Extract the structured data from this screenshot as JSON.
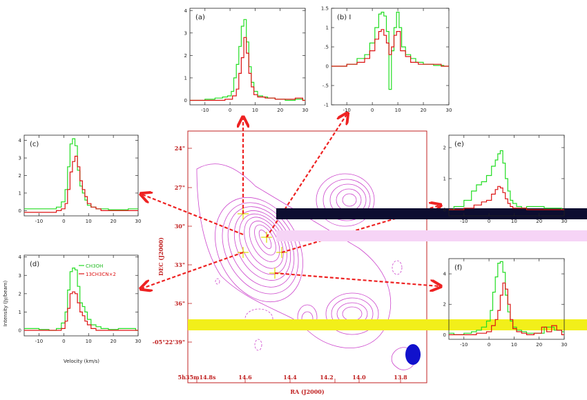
{
  "chart_data": [
    {
      "type": "line",
      "id": "a",
      "panel_label": "(a)",
      "xlim": [
        -16,
        30
      ],
      "ylim": [
        -0.2,
        4.1
      ],
      "xticks": [
        -10,
        0,
        10,
        20,
        30
      ],
      "yticks": [
        0,
        1,
        2,
        3,
        4
      ],
      "xticklabels": [
        "-10",
        "0",
        "10",
        "20",
        "30"
      ],
      "yticklabels": [
        "0",
        "1",
        "2",
        "3",
        "4"
      ],
      "series": [
        {
          "color": "#22dd22",
          "x": [
            -16,
            -12,
            -8,
            -4,
            -2,
            0,
            1,
            2,
            3,
            4,
            5,
            6,
            7,
            8,
            9,
            10,
            12,
            14,
            16,
            20,
            24,
            28,
            30
          ],
          "y": [
            0,
            0,
            0.05,
            0.1,
            0.15,
            0.2,
            0.4,
            1.0,
            1.6,
            2.4,
            3.3,
            3.6,
            2.6,
            1.5,
            0.8,
            0.4,
            0.2,
            0.15,
            0.1,
            0.05,
            0,
            0.05,
            0
          ]
        },
        {
          "color": "#dd1111",
          "x": [
            -16,
            -12,
            -8,
            -4,
            0,
            2,
            3,
            4,
            5,
            6,
            7,
            8,
            9,
            10,
            12,
            16,
            20,
            24,
            28,
            30
          ],
          "y": [
            0,
            0,
            0,
            0,
            0.05,
            0.2,
            0.5,
            1.2,
            1.9,
            2.8,
            2.1,
            1.2,
            0.6,
            0.25,
            0.15,
            0.1,
            0.05,
            0.05,
            0.1,
            0
          ]
        }
      ]
    },
    {
      "type": "line",
      "id": "b",
      "panel_label": "(b) I",
      "xlim": [
        -16,
        30
      ],
      "ylim": [
        -1,
        1.5
      ],
      "xticks": [
        -10,
        0,
        10,
        20,
        30
      ],
      "yticks": [
        -1,
        -0.5,
        0,
        0.5,
        1,
        1.5
      ],
      "xticklabels": [
        "-10",
        "0",
        "10",
        "20",
        "30"
      ],
      "yticklabels": [
        "-1",
        "-.5",
        "0",
        ".5",
        "1",
        "1.5"
      ],
      "series": [
        {
          "color": "#22dd22",
          "x": [
            -16,
            -12,
            -8,
            -4,
            -2,
            0,
            2,
            3,
            4,
            5,
            6,
            7,
            8,
            9,
            10,
            11,
            12,
            14,
            16,
            18,
            22,
            26,
            30
          ],
          "y": [
            0,
            0,
            0.05,
            0.2,
            0.3,
            0.6,
            1.0,
            1.35,
            1.4,
            1.3,
            0.9,
            -0.6,
            0.4,
            1.0,
            1.4,
            1.0,
            0.5,
            0.3,
            0.2,
            0.1,
            0.05,
            0.02,
            0
          ]
        },
        {
          "color": "#dd1111",
          "x": [
            -16,
            -12,
            -8,
            -4,
            -2,
            0,
            2,
            3,
            4,
            5,
            6,
            7,
            8,
            9,
            10,
            12,
            14,
            16,
            20,
            24,
            30
          ],
          "y": [
            0,
            0,
            0.05,
            0.1,
            0.2,
            0.4,
            0.7,
            0.9,
            0.95,
            0.8,
            0.6,
            0.3,
            0.5,
            0.8,
            0.9,
            0.4,
            0.25,
            0.1,
            0.05,
            0.05,
            0
          ]
        }
      ]
    },
    {
      "type": "line",
      "id": "c",
      "panel_label": "(c)",
      "xlim": [
        -16,
        30
      ],
      "ylim": [
        -0.3,
        4.3
      ],
      "xticks": [
        -10,
        0,
        10,
        20,
        30
      ],
      "yticks": [
        0,
        1,
        2,
        3,
        4
      ],
      "xticklabels": [
        "-10",
        "0",
        "10",
        "20",
        "30"
      ],
      "yticklabels": [
        "0",
        "1",
        "2",
        "3",
        "4"
      ],
      "series": [
        {
          "color": "#22dd22",
          "x": [
            -16,
            -12,
            -8,
            -4,
            -2,
            0,
            1,
            2,
            3,
            4,
            5,
            6,
            7,
            8,
            9,
            10,
            12,
            14,
            16,
            20,
            24,
            28,
            30
          ],
          "y": [
            0.1,
            0.1,
            0.1,
            0.1,
            0.2,
            0.5,
            1.2,
            2.5,
            3.8,
            4.1,
            3.7,
            2.3,
            1.4,
            1.0,
            0.6,
            0.3,
            0.2,
            0.1,
            0.1,
            0.05,
            0.05,
            0.1,
            0.1
          ]
        },
        {
          "color": "#dd1111",
          "x": [
            -16,
            -12,
            -8,
            -4,
            -2,
            0,
            1,
            2,
            3,
            4,
            5,
            6,
            7,
            8,
            9,
            10,
            12,
            14,
            16,
            20,
            24,
            28,
            30
          ],
          "y": [
            -0.1,
            -0.1,
            -0.1,
            -0.1,
            0,
            0.1,
            0.4,
            1.2,
            2.2,
            2.8,
            3.1,
            2.5,
            1.7,
            1.2,
            0.8,
            0.4,
            0.2,
            0.1,
            0,
            0,
            0,
            0,
            0
          ]
        }
      ]
    },
    {
      "type": "line",
      "id": "d",
      "panel_label": "(d)",
      "xlim": [
        -16,
        30
      ],
      "ylim": [
        -0.3,
        4.1
      ],
      "xticks": [
        -10,
        0,
        10,
        20,
        30
      ],
      "yticks": [
        0,
        1,
        2,
        3,
        4
      ],
      "xticklabels": [
        "-10",
        "0",
        "10",
        "20",
        "30"
      ],
      "yticklabels": [
        "0",
        "1",
        "2",
        "3",
        "4"
      ],
      "xlabel": "Velocity (km/s)",
      "ylabel": "Intensity (Jy/beam)",
      "legend": [
        {
          "label": "CH3OH",
          "color": "#22dd22"
        },
        {
          "label": "13CH3CN×2",
          "color": "#dd1111"
        }
      ],
      "series": [
        {
          "color": "#22dd22",
          "x": [
            -16,
            -12,
            -8,
            -4,
            -2,
            0,
            1,
            2,
            3,
            4,
            5,
            6,
            7,
            8,
            9,
            10,
            12,
            14,
            16,
            20,
            24,
            28,
            30
          ],
          "y": [
            0.1,
            0.1,
            0.05,
            0,
            0.1,
            0.4,
            1.0,
            2.2,
            3.2,
            3.4,
            3.3,
            2.4,
            1.5,
            1.3,
            1.0,
            0.6,
            0.3,
            0.2,
            0.1,
            0.05,
            0.1,
            0.1,
            0
          ]
        },
        {
          "color": "#dd1111",
          "x": [
            -16,
            -12,
            -8,
            -4,
            -2,
            0,
            1,
            2,
            3,
            4,
            5,
            6,
            7,
            8,
            9,
            10,
            12,
            14,
            16,
            20,
            24,
            28,
            30
          ],
          "y": [
            0,
            0,
            0,
            0,
            0,
            0.1,
            0.5,
            1.2,
            2.0,
            2.1,
            2.0,
            1.5,
            1.0,
            0.8,
            0.5,
            0.3,
            0.1,
            0,
            0,
            0,
            0,
            0,
            0
          ]
        }
      ]
    },
    {
      "type": "line",
      "id": "e",
      "panel_label": "(e)",
      "xlim": [
        -16,
        30
      ],
      "ylim": [
        -0.2,
        2.4
      ],
      "xticks": [
        -10,
        0,
        10,
        20,
        30
      ],
      "yticks": [
        0,
        1,
        2
      ],
      "xticklabels": [
        "-10",
        "0",
        "10",
        "20",
        "30"
      ],
      "yticklabels": [
        "0",
        "1",
        "2"
      ],
      "series": [
        {
          "color": "#22dd22",
          "x": [
            -16,
            -12,
            -8,
            -6,
            -4,
            -2,
            0,
            2,
            3,
            4,
            5,
            6,
            7,
            8,
            9,
            10,
            12,
            14,
            16,
            20,
            24,
            28,
            30
          ],
          "y": [
            0,
            0.1,
            0.3,
            0.6,
            0.8,
            0.9,
            1.1,
            1.4,
            1.6,
            1.8,
            1.9,
            1.5,
            1.0,
            0.6,
            0.3,
            0.2,
            0.1,
            0.05,
            0.1,
            0.1,
            0.05,
            0.05,
            0
          ]
        },
        {
          "color": "#dd1111",
          "x": [
            -16,
            -12,
            -8,
            -4,
            -2,
            0,
            2,
            3,
            4,
            5,
            6,
            7,
            8,
            9,
            10,
            12,
            14,
            16,
            20,
            24,
            30
          ],
          "y": [
            0,
            0,
            0.05,
            0.15,
            0.25,
            0.3,
            0.5,
            0.65,
            0.75,
            0.7,
            0.55,
            0.35,
            0.2,
            0.1,
            0.05,
            0.05,
            0.05,
            0,
            0,
            0,
            0
          ]
        }
      ]
    },
    {
      "type": "line",
      "id": "f",
      "panel_label": "(f)",
      "xlim": [
        -16,
        30
      ],
      "ylim": [
        -0.3,
        5.0
      ],
      "xticks": [
        -10,
        0,
        10,
        20,
        30
      ],
      "yticks": [
        0,
        2,
        4
      ],
      "xticklabels": [
        "-10",
        "0",
        "10",
        "20",
        "30"
      ],
      "yticklabels": [
        "0",
        "2",
        "4"
      ],
      "series": [
        {
          "color": "#22dd22",
          "x": [
            -16,
            -12,
            -8,
            -6,
            -4,
            -2,
            0,
            1,
            2,
            3,
            4,
            5,
            6,
            7,
            8,
            9,
            10,
            12,
            14,
            16,
            20,
            24,
            28,
            30
          ],
          "y": [
            0.1,
            0,
            0.1,
            0.2,
            0.3,
            0.5,
            0.9,
            1.6,
            2.8,
            3.8,
            4.7,
            4.8,
            4.1,
            2.6,
            1.5,
            0.9,
            0.5,
            0.3,
            0.2,
            0.1,
            0.1,
            0.5,
            0.3,
            0.2
          ]
        },
        {
          "color": "#dd1111",
          "x": [
            -16,
            -12,
            -8,
            -6,
            -4,
            -2,
            0,
            2,
            3,
            4,
            5,
            6,
            7,
            8,
            9,
            10,
            12,
            14,
            16,
            20,
            22,
            24,
            26,
            28,
            30
          ],
          "y": [
            0,
            0,
            0,
            0,
            0.1,
            0.1,
            0.2,
            0.6,
            1.0,
            1.6,
            2.6,
            3.4,
            3.0,
            2.0,
            1.0,
            0.4,
            0.2,
            0.1,
            0,
            0.1,
            0.5,
            0.2,
            0.6,
            0.3,
            0
          ]
        }
      ]
    }
  ],
  "map": {
    "xlabel": "RA (J2000)",
    "ylabel": "DEC (J2000)",
    "ra_ticks": [
      "5h35m14.8s",
      "14.6",
      "14.4",
      "14.2",
      "14.0",
      "13.8"
    ],
    "dec_ticks": [
      "24\"",
      "27\"",
      "30\"",
      "33\"",
      "36\"",
      "-05°22'39\""
    ],
    "contour_color": "#cc44cc",
    "beam_color": "#1111cc",
    "arrow_color": "#ee2222",
    "marker_color": "#dddd00"
  }
}
